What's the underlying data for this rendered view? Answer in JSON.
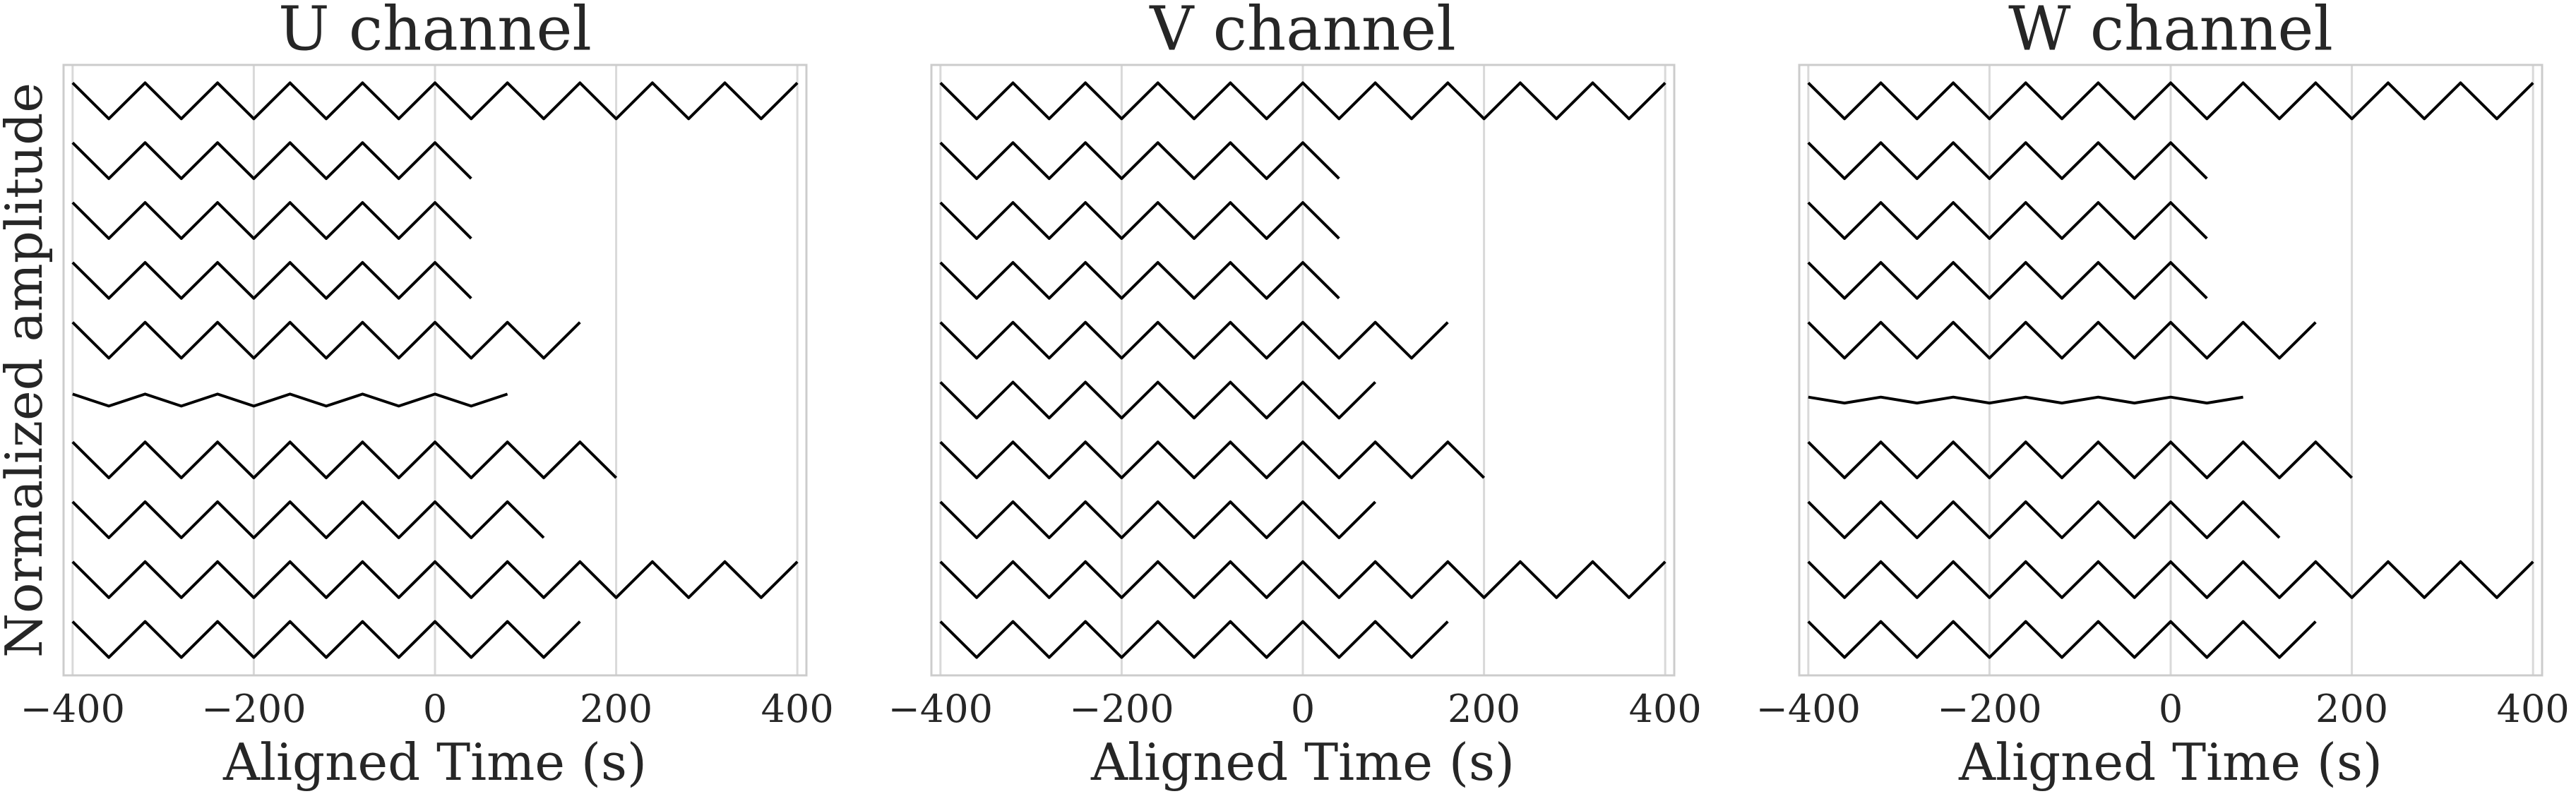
{
  "chart_data": [
    {
      "type": "line",
      "title": "U channel",
      "x_label": "Aligned Time (s)",
      "y_label": "Normalized amplitude",
      "xlim": [
        -410,
        410
      ],
      "ylim": [
        -9.6,
        0.6
      ],
      "grid": true,
      "xticks": [
        {
          "value": -400,
          "label": "−400"
        },
        {
          "value": -200,
          "label": "−200"
        },
        0,
        200,
        400
      ],
      "x": [
        -400,
        -360,
        -320,
        -280,
        -240,
        -200,
        -160,
        -120,
        -80,
        -40,
        0,
        40,
        80,
        120,
        160,
        200,
        240,
        280,
        320,
        360,
        400
      ],
      "series": [
        {
          "color": "#000000",
          "values": [
            0.3,
            -0.3,
            0.3,
            -0.3,
            0.3,
            -0.3,
            0.3,
            -0.3,
            0.3,
            -0.3,
            0.3,
            -0.3,
            0.3,
            -0.3,
            0.3,
            -0.3,
            0.3,
            -0.3,
            0.3,
            -0.3,
            0.3
          ]
        },
        {
          "color": "#000000",
          "values": [
            -0.7,
            -1.3,
            -0.7,
            -1.3,
            -0.7,
            -1.3,
            -0.7,
            -1.3,
            -0.7,
            -1.3,
            -0.7,
            -1.3,
            null,
            null,
            null,
            null,
            null,
            null,
            null,
            null,
            null
          ]
        },
        {
          "color": "#000000",
          "values": [
            -1.7,
            -2.3,
            -1.7,
            -2.3,
            -1.7,
            -2.3,
            -1.7,
            -2.3,
            -1.7,
            -2.3,
            -1.7,
            -2.3,
            null,
            null,
            null,
            null,
            null,
            null,
            null,
            null,
            null
          ]
        },
        {
          "color": "#000000",
          "values": [
            -2.7,
            -3.3,
            -2.7,
            -3.3,
            -2.7,
            -3.3,
            -2.7,
            -3.3,
            -2.7,
            -3.3,
            -2.7,
            -3.3,
            null,
            null,
            null,
            null,
            null,
            null,
            null,
            null,
            null
          ]
        },
        {
          "color": "#000000",
          "values": [
            -3.7,
            -4.3,
            -3.7,
            -4.3,
            -3.7,
            -4.3,
            -3.7,
            -4.3,
            -3.7,
            -4.3,
            -3.7,
            -4.3,
            -3.7,
            -4.3,
            -3.7,
            null,
            null,
            null,
            null,
            null,
            null
          ]
        },
        {
          "color": "#000000",
          "values": [
            -4.9,
            -5.1,
            -4.9,
            -5.1,
            -4.9,
            -5.1,
            -4.9,
            -5.1,
            -4.9,
            -5.1,
            -4.9,
            -5.1,
            -4.9,
            null,
            null,
            null,
            null,
            null,
            null,
            null,
            null
          ]
        },
        {
          "color": "#000000",
          "values": [
            -5.7,
            -6.3,
            -5.7,
            -6.3,
            -5.7,
            -6.3,
            -5.7,
            -6.3,
            -5.7,
            -6.3,
            -5.7,
            -6.3,
            -5.7,
            -6.3,
            -5.7,
            -6.3,
            null,
            null,
            null,
            null,
            null
          ]
        },
        {
          "color": "#000000",
          "values": [
            -6.7,
            -7.3,
            -6.7,
            -7.3,
            -6.7,
            -7.3,
            -6.7,
            -7.3,
            -6.7,
            -7.3,
            -6.7,
            -7.3,
            -6.7,
            -7.3,
            null,
            null,
            null,
            null,
            null,
            null,
            null
          ]
        },
        {
          "color": "#000000",
          "values": [
            -7.7,
            -8.3,
            -7.7,
            -8.3,
            -7.7,
            -8.3,
            -7.7,
            -8.3,
            -7.7,
            -8.3,
            -7.7,
            -8.3,
            -7.7,
            -8.3,
            -7.7,
            -8.3,
            -7.7,
            -8.3,
            -7.7,
            -8.3,
            -7.7
          ]
        },
        {
          "color": "#000000",
          "values": [
            -8.7,
            -9.3,
            -8.7,
            -9.3,
            -8.7,
            -9.3,
            -8.7,
            -9.3,
            -8.7,
            -9.3,
            -8.7,
            -9.3,
            -8.7,
            -9.3,
            -8.7,
            null,
            null,
            null,
            null,
            null,
            null
          ]
        }
      ]
    },
    {
      "type": "line",
      "title": "V channel",
      "x_label": "Aligned Time (s)",
      "xlim": [
        -410,
        410
      ],
      "ylim": [
        -9.6,
        0.6
      ],
      "grid": true,
      "xticks": [
        {
          "value": -400,
          "label": "−400"
        },
        {
          "value": -200,
          "label": "−200"
        },
        0,
        200,
        400
      ],
      "x": [
        -400,
        -360,
        -320,
        -280,
        -240,
        -200,
        -160,
        -120,
        -80,
        -40,
        0,
        40,
        80,
        120,
        160,
        200,
        240,
        280,
        320,
        360,
        400
      ],
      "series": [
        {
          "color": "#000000",
          "values": [
            0.3,
            -0.3,
            0.3,
            -0.3,
            0.3,
            -0.3,
            0.3,
            -0.3,
            0.3,
            -0.3,
            0.3,
            -0.3,
            0.3,
            -0.3,
            0.3,
            -0.3,
            0.3,
            -0.3,
            0.3,
            -0.3,
            0.3
          ]
        },
        {
          "color": "#000000",
          "values": [
            -0.7,
            -1.3,
            -0.7,
            -1.3,
            -0.7,
            -1.3,
            -0.7,
            -1.3,
            -0.7,
            -1.3,
            -0.7,
            -1.3,
            null,
            null,
            null,
            null,
            null,
            null,
            null,
            null,
            null
          ]
        },
        {
          "color": "#000000",
          "values": [
            -1.7,
            -2.3,
            -1.7,
            -2.3,
            -1.7,
            -2.3,
            -1.7,
            -2.3,
            -1.7,
            -2.3,
            -1.7,
            -2.3,
            null,
            null,
            null,
            null,
            null,
            null,
            null,
            null,
            null
          ]
        },
        {
          "color": "#000000",
          "values": [
            -2.7,
            -3.3,
            -2.7,
            -3.3,
            -2.7,
            -3.3,
            -2.7,
            -3.3,
            -2.7,
            -3.3,
            -2.7,
            -3.3,
            null,
            null,
            null,
            null,
            null,
            null,
            null,
            null,
            null
          ]
        },
        {
          "color": "#000000",
          "values": [
            -3.7,
            -4.3,
            -3.7,
            -4.3,
            -3.7,
            -4.3,
            -3.7,
            -4.3,
            -3.7,
            -4.3,
            -3.7,
            -4.3,
            -3.7,
            -4.3,
            -3.7,
            null,
            null,
            null,
            null,
            null,
            null
          ]
        },
        {
          "color": "#000000",
          "values": [
            -4.7,
            -5.3,
            -4.7,
            -5.3,
            -4.7,
            -5.3,
            -4.7,
            -5.3,
            -4.7,
            -5.3,
            -4.7,
            -5.3,
            -4.7,
            null,
            null,
            null,
            null,
            null,
            null,
            null,
            null
          ]
        },
        {
          "color": "#000000",
          "values": [
            -5.7,
            -6.3,
            -5.7,
            -6.3,
            -5.7,
            -6.3,
            -5.7,
            -6.3,
            -5.7,
            -6.3,
            -5.7,
            -6.3,
            -5.7,
            -6.3,
            -5.7,
            -6.3,
            null,
            null,
            null,
            null,
            null
          ]
        },
        {
          "color": "#000000",
          "values": [
            -6.7,
            -7.3,
            -6.7,
            -7.3,
            -6.7,
            -7.3,
            -6.7,
            -7.3,
            -6.7,
            -7.3,
            -6.7,
            -7.3,
            -6.7,
            null,
            null,
            null,
            null,
            null,
            null,
            null,
            null
          ]
        },
        {
          "color": "#000000",
          "values": [
            -7.7,
            -8.3,
            -7.7,
            -8.3,
            -7.7,
            -8.3,
            -7.7,
            -8.3,
            -7.7,
            -8.3,
            -7.7,
            -8.3,
            -7.7,
            -8.3,
            -7.7,
            -8.3,
            -7.7,
            -8.3,
            -7.7,
            -8.3,
            -7.7
          ]
        },
        {
          "color": "#000000",
          "values": [
            -8.7,
            -9.3,
            -8.7,
            -9.3,
            -8.7,
            -9.3,
            -8.7,
            -9.3,
            -8.7,
            -9.3,
            -8.7,
            -9.3,
            -8.7,
            -9.3,
            -8.7,
            null,
            null,
            null,
            null,
            null,
            null
          ]
        }
      ]
    },
    {
      "type": "line",
      "title": "W channel",
      "x_label": "Aligned Time (s)",
      "xlim": [
        -410,
        410
      ],
      "ylim": [
        -9.6,
        0.6
      ],
      "grid": true,
      "xticks": [
        {
          "value": -400,
          "label": "−400"
        },
        {
          "value": -200,
          "label": "−200"
        },
        0,
        200,
        400
      ],
      "x": [
        -400,
        -360,
        -320,
        -280,
        -240,
        -200,
        -160,
        -120,
        -80,
        -40,
        0,
        40,
        80,
        120,
        160,
        200,
        240,
        280,
        320,
        360,
        400
      ],
      "series": [
        {
          "color": "#000000",
          "values": [
            0.3,
            -0.3,
            0.3,
            -0.3,
            0.3,
            -0.3,
            0.3,
            -0.3,
            0.3,
            -0.3,
            0.3,
            -0.3,
            0.3,
            -0.3,
            0.3,
            -0.3,
            0.3,
            -0.3,
            0.3,
            -0.3,
            0.3
          ]
        },
        {
          "color": "#000000",
          "values": [
            -0.7,
            -1.3,
            -0.7,
            -1.3,
            -0.7,
            -1.3,
            -0.7,
            -1.3,
            -0.7,
            -1.3,
            -0.7,
            -1.3,
            null,
            null,
            null,
            null,
            null,
            null,
            null,
            null,
            null
          ]
        },
        {
          "color": "#000000",
          "values": [
            -1.7,
            -2.3,
            -1.7,
            -2.3,
            -1.7,
            -2.3,
            -1.7,
            -2.3,
            -1.7,
            -2.3,
            -1.7,
            -2.3,
            null,
            null,
            null,
            null,
            null,
            null,
            null,
            null,
            null
          ]
        },
        {
          "color": "#000000",
          "values": [
            -2.7,
            -3.3,
            -2.7,
            -3.3,
            -2.7,
            -3.3,
            -2.7,
            -3.3,
            -2.7,
            -3.3,
            -2.7,
            -3.3,
            null,
            null,
            null,
            null,
            null,
            null,
            null,
            null,
            null
          ]
        },
        {
          "color": "#000000",
          "values": [
            -3.7,
            -4.3,
            -3.7,
            -4.3,
            -3.7,
            -4.3,
            -3.7,
            -4.3,
            -3.7,
            -4.3,
            -3.7,
            -4.3,
            -3.7,
            -4.3,
            -3.7,
            null,
            null,
            null,
            null,
            null,
            null
          ]
        },
        {
          "color": "#000000",
          "values": [
            -4.95,
            -5.05,
            -4.95,
            -5.05,
            -4.95,
            -5.05,
            -4.95,
            -5.05,
            -4.95,
            -5.05,
            -4.95,
            -5.05,
            -4.95,
            null,
            null,
            null,
            null,
            null,
            null,
            null,
            null
          ]
        },
        {
          "color": "#000000",
          "values": [
            -5.7,
            -6.3,
            -5.7,
            -6.3,
            -5.7,
            -6.3,
            -5.7,
            -6.3,
            -5.7,
            -6.3,
            -5.7,
            -6.3,
            -5.7,
            -6.3,
            -5.7,
            -6.3,
            null,
            null,
            null,
            null,
            null
          ]
        },
        {
          "color": "#000000",
          "values": [
            -6.7,
            -7.3,
            -6.7,
            -7.3,
            -6.7,
            -7.3,
            -6.7,
            -7.3,
            -6.7,
            -7.3,
            -6.7,
            -7.3,
            -6.7,
            -7.3,
            null,
            null,
            null,
            null,
            null,
            null,
            null
          ]
        },
        {
          "color": "#000000",
          "values": [
            -7.7,
            -8.3,
            -7.7,
            -8.3,
            -7.7,
            -8.3,
            -7.7,
            -8.3,
            -7.7,
            -8.3,
            -7.7,
            -8.3,
            -7.7,
            -8.3,
            -7.7,
            -8.3,
            -7.7,
            -8.3,
            -7.7,
            -8.3,
            -7.7
          ]
        },
        {
          "color": "#000000",
          "values": [
            -8.7,
            -9.3,
            -8.7,
            -9.3,
            -8.7,
            -9.3,
            -8.7,
            -9.3,
            -8.7,
            -9.3,
            -8.7,
            -9.3,
            -8.7,
            -9.3,
            -8.7,
            null,
            null,
            null,
            null,
            null,
            null
          ]
        }
      ]
    }
  ]
}
